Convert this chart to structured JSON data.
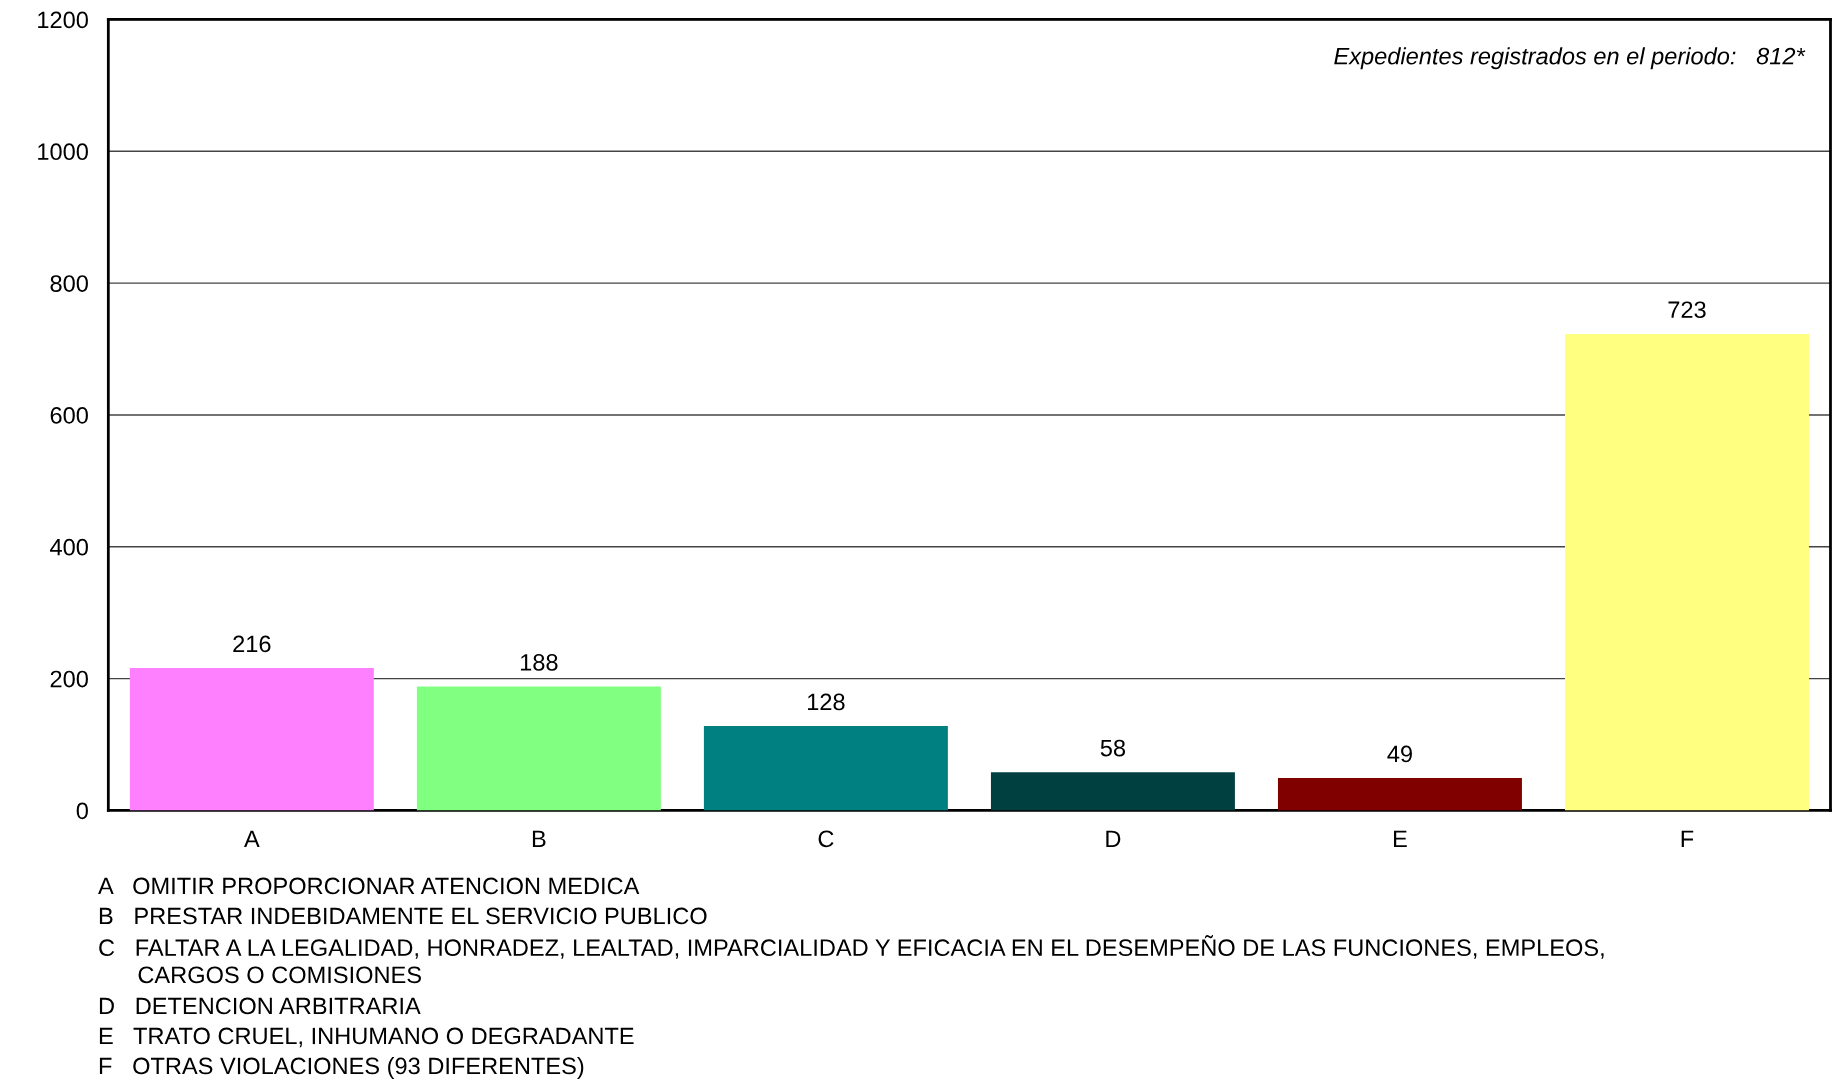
{
  "chart_data": {
    "type": "bar",
    "categories": [
      "A",
      "B",
      "C",
      "D",
      "E",
      "F"
    ],
    "values": [
      216,
      188,
      128,
      58,
      49,
      723
    ],
    "colors": [
      "#ff80ff",
      "#80ff80",
      "#008080",
      "#004040",
      "#800000",
      "#ffff80"
    ],
    "ylim": [
      0,
      1200
    ],
    "yticks": [
      0,
      200,
      400,
      600,
      800,
      1000,
      1200
    ],
    "grid": "y",
    "data_labels": true,
    "annotations": [
      "Expedientes registrados en el periodo:   812*",
      "A   OMITIR PROPORCIONAR ATENCION MEDICA",
      "B   PRESTAR INDEBIDAMENTE EL SERVICIO PUBLICO",
      "C   FALTAR A LA LEGALIDAD, HONRADEZ, LEALTAD, IMPARCIALIDAD Y EFICACIA EN EL DESEMPEÑO DE LAS FUNCIONES, EMPLEOS,\n      CARGOS O COMISIONES",
      "D   DETENCION ARBITRARIA",
      "E   TRATO CRUEL, INHUMANO O DEGRADANTE",
      "F   OTRAS VIOLACIONES (93 DIFERENTES)"
    ]
  }
}
